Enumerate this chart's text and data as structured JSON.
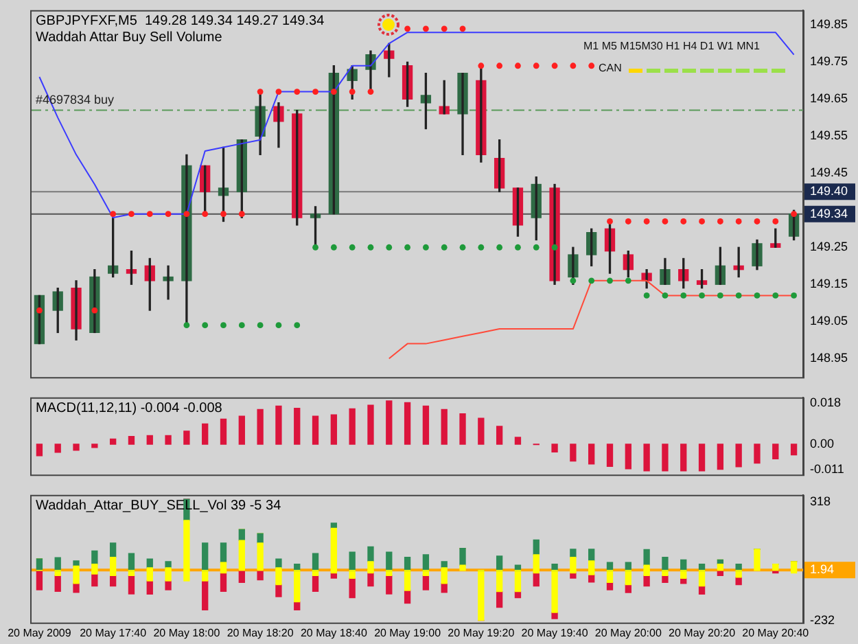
{
  "chart_data": [
    {
      "type": "candlestick",
      "title": "GBPJPYFXF,M5  149.28 149.34 149.27 149.34",
      "subtitle": "Waddah Attar Buy Sell Volume",
      "categories": [
        null,
        null,
        null,
        null,
        null,
        null,
        null,
        null,
        null,
        null,
        null,
        null,
        null,
        null,
        null,
        null,
        null,
        null,
        null,
        null,
        null,
        null,
        null,
        null,
        null,
        null,
        null,
        null,
        null,
        null,
        null,
        null,
        null,
        null,
        null,
        null,
        null,
        null,
        null,
        null,
        null,
        null
      ],
      "ohlc": [
        [
          148.99,
          149.12,
          148.99,
          149.12
        ],
        [
          149.08,
          149.14,
          149.02,
          149.13
        ],
        [
          149.14,
          149.16,
          149.0,
          149.03
        ],
        [
          149.02,
          149.19,
          149.02,
          149.17
        ],
        [
          149.18,
          149.33,
          149.17,
          149.2
        ],
        [
          149.19,
          149.24,
          149.15,
          149.18
        ],
        [
          149.2,
          149.22,
          149.08,
          149.16
        ],
        [
          149.16,
          149.2,
          149.11,
          149.17
        ],
        [
          149.16,
          149.5,
          149.04,
          149.47
        ],
        [
          149.47,
          149.47,
          149.34,
          149.4
        ],
        [
          149.39,
          149.52,
          149.32,
          149.41
        ],
        [
          149.4,
          149.54,
          149.33,
          149.54
        ],
        [
          149.55,
          149.67,
          149.5,
          149.63
        ],
        [
          149.63,
          149.64,
          149.52,
          149.59
        ],
        [
          149.61,
          149.62,
          149.31,
          149.33
        ],
        [
          149.33,
          149.36,
          149.25,
          149.34
        ],
        [
          149.34,
          149.74,
          149.34,
          149.72
        ],
        [
          149.7,
          149.74,
          149.65,
          149.73
        ],
        [
          149.73,
          149.78,
          149.67,
          149.77
        ],
        [
          149.78,
          149.8,
          149.71,
          149.76
        ],
        [
          149.74,
          149.75,
          149.63,
          149.65
        ],
        [
          149.64,
          149.72,
          149.57,
          149.66
        ],
        [
          149.63,
          149.7,
          149.61,
          149.61
        ],
        [
          149.61,
          149.72,
          149.5,
          149.72
        ],
        [
          149.7,
          149.74,
          149.48,
          149.5
        ],
        [
          149.49,
          149.54,
          149.4,
          149.41
        ],
        [
          149.41,
          149.41,
          149.28,
          149.31
        ],
        [
          149.33,
          149.44,
          149.27,
          149.42
        ],
        [
          149.41,
          149.42,
          149.15,
          149.16
        ],
        [
          149.17,
          149.25,
          149.15,
          149.23
        ],
        [
          149.23,
          149.3,
          149.2,
          149.29
        ],
        [
          149.3,
          149.32,
          149.18,
          149.24
        ],
        [
          149.23,
          149.24,
          149.17,
          149.19
        ],
        [
          149.18,
          149.19,
          149.14,
          149.16
        ],
        [
          149.15,
          149.22,
          149.15,
          149.19
        ],
        [
          149.19,
          149.22,
          149.14,
          149.16
        ],
        [
          149.16,
          149.19,
          149.14,
          149.15
        ],
        [
          149.15,
          149.25,
          149.15,
          149.2
        ],
        [
          149.2,
          149.25,
          149.17,
          149.19
        ],
        [
          149.2,
          149.27,
          149.19,
          149.26
        ],
        [
          149.26,
          149.3,
          149.25,
          149.25
        ],
        [
          149.28,
          149.35,
          149.27,
          149.34
        ]
      ],
      "colors": [
        "#2f6b45",
        "#2f6b45",
        "#dc143c",
        "#2f6b45",
        "#2f6b45",
        "#dc143c",
        "#dc143c",
        "#2f6b45",
        "#2f6b45",
        "#dc143c",
        "#2f6b45",
        "#2f6b45",
        "#2f6b45",
        "#dc143c",
        "#dc143c",
        "#2f6b45",
        "#2f6b45",
        "#2f6b45",
        "#2f6b45",
        "#dc143c",
        "#dc143c",
        "#2f6b45",
        "#dc143c",
        "#2f6b45",
        "#dc143c",
        "#dc143c",
        "#dc143c",
        "#2f6b45",
        "#dc143c",
        "#2f6b45",
        "#2f6b45",
        "#dc143c",
        "#dc143c",
        "#dc143c",
        "#2f6b45",
        "#dc143c",
        "#dc143c",
        "#2f6b45",
        "#dc143c",
        "#2f6b45",
        "#dc143c",
        "#2f6b45"
      ],
      "series": [
        {
          "type": "line",
          "color": "#3b3bff",
          "values": [
            149.71,
            149.6,
            149.5,
            149.42,
            149.33,
            149.34,
            149.34,
            149.34,
            149.34,
            149.51,
            149.52,
            149.53,
            149.54,
            149.67,
            149.67,
            149.67,
            149.67,
            149.74,
            149.74,
            149.8,
            149.83,
            149.83,
            149.83,
            149.83,
            149.83,
            149.83,
            149.83,
            149.83,
            149.83,
            149.83,
            149.83,
            149.83,
            149.83,
            149.83,
            149.83,
            149.83,
            149.83,
            149.83,
            149.83,
            149.83,
            149.83,
            149.77
          ]
        },
        {
          "type": "line",
          "color": "#ff4a3a",
          "values": [
            null,
            null,
            null,
            null,
            null,
            null,
            null,
            null,
            null,
            null,
            null,
            null,
            null,
            null,
            null,
            null,
            null,
            null,
            null,
            148.95,
            148.99,
            148.99,
            149.0,
            149.01,
            149.02,
            149.03,
            149.03,
            149.03,
            149.03,
            149.03,
            149.16,
            149.16,
            149.16,
            149.16,
            149.12,
            149.12,
            149.12,
            149.12,
            149.12,
            149.12,
            149.12,
            149.12
          ]
        },
        {
          "type": "scatter",
          "color": "#ff2020",
          "marker": "circle",
          "values": [
            149.08,
            null,
            null,
            149.08,
            149.34,
            149.34,
            149.34,
            149.34,
            149.34,
            149.34,
            149.34,
            149.34,
            149.67,
            149.67,
            149.67,
            149.67,
            149.67,
            149.67,
            149.67,
            null,
            149.84,
            149.84,
            149.84,
            149.84,
            149.74,
            149.74,
            149.74,
            149.74,
            149.74,
            149.74,
            149.74,
            149.32,
            149.32,
            149.32,
            149.32,
            149.32,
            149.32,
            149.32,
            149.32,
            149.32,
            149.32,
            149.34
          ]
        },
        {
          "type": "scatter",
          "color": "#1e9a3a",
          "marker": "circle",
          "values": [
            null,
            null,
            null,
            null,
            null,
            null,
            null,
            null,
            149.04,
            149.04,
            149.04,
            149.04,
            149.04,
            149.04,
            149.04,
            149.25,
            149.25,
            149.25,
            149.25,
            149.25,
            149.25,
            149.25,
            149.25,
            149.25,
            149.25,
            149.25,
            149.25,
            149.25,
            149.25,
            149.16,
            149.16,
            149.16,
            149.16,
            149.12,
            149.12,
            149.12,
            149.12,
            149.12,
            149.12,
            149.12,
            149.12,
            149.12
          ]
        }
      ],
      "ylim": [
        148.9,
        149.89
      ],
      "yticks": [
        149.85,
        149.75,
        149.65,
        149.55,
        149.45,
        149.25,
        149.15,
        149.05,
        148.95
      ],
      "ref_lines": [
        {
          "axis": "y",
          "value": 149.4,
          "label": "149.40",
          "color": "#7a7a7a",
          "line_style": "solid"
        },
        {
          "axis": "y",
          "value": 149.34,
          "label": "149.34",
          "color": "#555555",
          "line_style": "solid"
        },
        {
          "axis": "y",
          "value": 149.62,
          "label": "#4697834 buy",
          "color": "#5a9a5a",
          "line_style": "dashed"
        }
      ],
      "annotations": [
        "M1 M5 M15M30 H1 H4 D1 W1 MN1",
        "CAN"
      ],
      "grid": false,
      "legend": false,
      "tick_labels": "y"
    },
    {
      "type": "bar",
      "title": "MACD(11,12,11) -0.004 -0.008",
      "color": "#dc143c",
      "categories": [
        null,
        null,
        null,
        null,
        null,
        null,
        null,
        null,
        null,
        null,
        null,
        null,
        null,
        null,
        null,
        null,
        null,
        null,
        null,
        null,
        null,
        null,
        null,
        null,
        null,
        null,
        null,
        null,
        null,
        null,
        null,
        null,
        null,
        null,
        null,
        null,
        null,
        null,
        null,
        null,
        null,
        null
      ],
      "values": [
        -0.0051,
        -0.0036,
        -0.0027,
        -0.0015,
        0.0023,
        0.0034,
        0.0038,
        0.0038,
        0.0057,
        0.0089,
        0.011,
        0.0123,
        0.0152,
        0.0167,
        0.0157,
        0.0123,
        0.0129,
        0.0155,
        0.0171,
        0.019,
        0.0182,
        0.0167,
        0.0152,
        0.0133,
        0.0114,
        0.0078,
        0.003,
        -0.0002,
        -0.0034,
        -0.0074,
        -0.0087,
        -0.0097,
        -0.0108,
        -0.0117,
        -0.0117,
        -0.0117,
        -0.0117,
        -0.011,
        -0.0099,
        -0.0083,
        -0.0064,
        -0.0047
      ],
      "ylim": [
        -0.0133,
        0.0205
      ],
      "yticks": [
        0.018,
        {
          "value": 0,
          "label": "0.00"
        },
        -0.011
      ],
      "grid": false,
      "legend": false,
      "tick_labels": "y"
    },
    {
      "type": "bar",
      "title": "Waddah_Attar_BUY_SELL_Vol 39 -5 34",
      "stacked": true,
      "categories": [
        "20 May 2009",
        null,
        null,
        null,
        "20 May 17:40",
        null,
        null,
        null,
        "20 May 18:00",
        null,
        null,
        null,
        "20 May 18:20",
        null,
        null,
        null,
        "20 May 18:40",
        null,
        null,
        null,
        "20 May 19:00",
        null,
        null,
        null,
        "20 May 19:20",
        null,
        null,
        null,
        "20 May 19:40",
        null,
        null,
        null,
        "20 May 20:00",
        null,
        null,
        null,
        "20 May 20:20",
        null,
        null,
        null,
        "20 May 20:40",
        null
      ],
      "series": [
        {
          "color": "#ffff00",
          "values": [
            0,
            0,
            20,
            29,
            61,
            0,
            12,
            12,
            232,
            0,
            37,
            139,
            127,
            12,
            0,
            0,
            195,
            0,
            41,
            0,
            0,
            0,
            12,
            24,
            0,
            0,
            0,
            73,
            0,
            61,
            44,
            0,
            0,
            24,
            0,
            0,
            0,
            29,
            0,
            98,
            29,
            41
          ]
        },
        {
          "color": "#2e8b57",
          "values": [
            54,
            59,
            24,
            61,
            66,
            78,
            41,
            29,
            98,
            127,
            90,
            51,
            44,
            41,
            29,
            78,
            24,
            85,
            68,
            85,
            61,
            73,
            29,
            78,
            0,
            66,
            24,
            68,
            29,
            37,
            54,
            37,
            37,
            73,
            61,
            49,
            29,
            20,
            29,
            0,
            0,
            0
          ]
        },
        {
          "color": "#ffff00",
          "values": [
            0,
            -24,
            -61,
            -17,
            -24,
            -24,
            -49,
            -49,
            -49,
            -49,
            -12,
            0,
            0,
            -66,
            -146,
            -24,
            -12,
            -37,
            -12,
            -24,
            -93,
            -24,
            -61,
            0,
            -232,
            -98,
            -98,
            -12,
            -195,
            -12,
            -20,
            -56,
            -66,
            -24,
            -24,
            -37,
            -73,
            0,
            -32,
            0,
            0,
            -12
          ]
        },
        {
          "color": "#dc143c",
          "values": [
            -90,
            -73,
            -41,
            -56,
            -49,
            -85,
            -61,
            -41,
            0,
            -134,
            -85,
            -56,
            -44,
            -56,
            -37,
            -73,
            -24,
            -90,
            -61,
            -85,
            -59,
            -66,
            -41,
            0,
            0,
            -73,
            -29,
            -61,
            -29,
            -24,
            -34,
            -34,
            -37,
            -49,
            -32,
            -24,
            -37,
            -24,
            -34,
            0,
            -12,
            0
          ]
        }
      ],
      "ylim": [
        -242,
        350
      ],
      "yticks": [
        318,
        -232
      ],
      "ref_lines": [
        {
          "axis": "y",
          "value": 1.94,
          "label": "1.94",
          "color": "#ffa500",
          "line_style": "solid"
        }
      ],
      "grid": false,
      "legend": false
    }
  ]
}
